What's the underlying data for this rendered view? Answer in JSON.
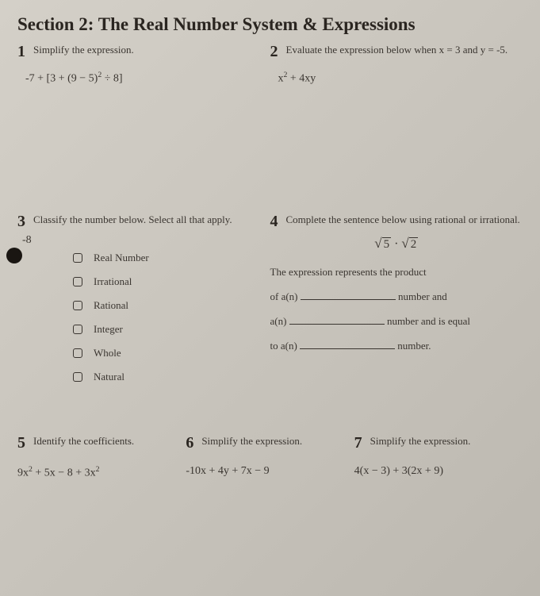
{
  "colors": {
    "background_start": "#d4d0c8",
    "background_end": "#bcb8b0",
    "text": "#3a3530",
    "heading": "#2a2520",
    "hole": "#1a1612"
  },
  "section_title": "Section 2: The Real Number System & Expressions",
  "q1": {
    "num": "1",
    "prompt": "Simplify the expression.",
    "expression": "-7 + [3 + (9 − 5)² ÷ 8]"
  },
  "q2": {
    "num": "2",
    "prompt": "Evaluate the expression below when x = 3 and y = -5.",
    "expression": "x² + 4xy"
  },
  "q3": {
    "num": "3",
    "prompt": "Classify the number below. Select all that apply.",
    "value": "-8",
    "options": [
      "Real Number",
      "Irrational",
      "Rational",
      "Integer",
      "Whole",
      "Natural"
    ]
  },
  "q4": {
    "num": "4",
    "prompt": "Complete the sentence below using rational or irrational.",
    "sqrt_a": "5",
    "sqrt_dot": "·",
    "sqrt_b": "2",
    "line1a": "The expression represents the product",
    "line2a": "of a(n)",
    "line2b": "number and",
    "line3a": "a(n)",
    "line3b": "number and is equal",
    "line4a": "to a(n)",
    "line4b": "number."
  },
  "q5": {
    "num": "5",
    "prompt": "Identify the coefficients.",
    "expression": "9x² + 5x − 8 + 3x²"
  },
  "q6": {
    "num": "6",
    "prompt": "Simplify the expression.",
    "expression": "-10x + 4y + 7x − 9"
  },
  "q7": {
    "num": "7",
    "prompt": "Simplify the expression.",
    "expression": "4(x − 3) + 3(2x + 9)"
  }
}
